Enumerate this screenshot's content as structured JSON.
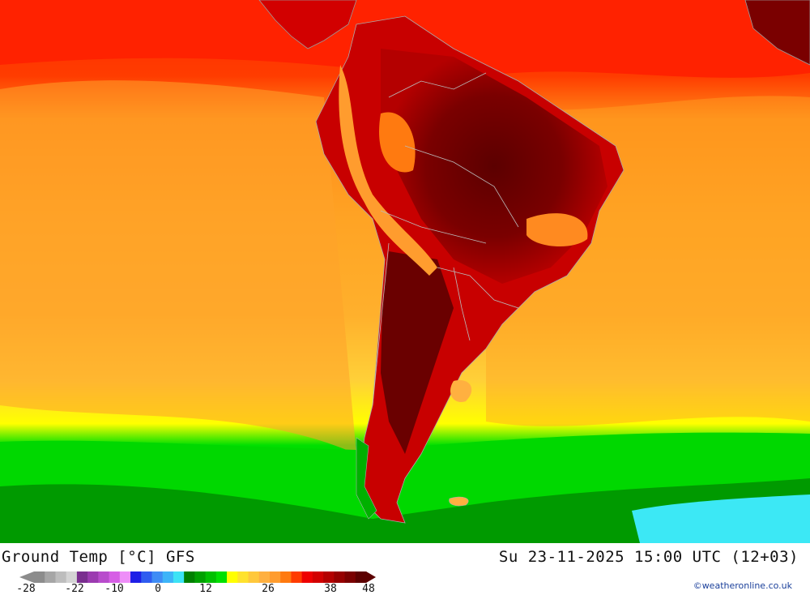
{
  "title": "Ground Temp [°C] GFS",
  "datetime": "Su 23-11-2025 15:00 UTC (12+03)",
  "credit": "©weatheronline.co.uk",
  "legend": {
    "ticks": [
      "-28",
      "-22",
      "-10",
      "0",
      "12",
      "26",
      "38",
      "48"
    ],
    "colors": [
      "#8c8c8c",
      "#a6a6a6",
      "#bdbdbd",
      "#d4d4d4",
      "#7a2e8f",
      "#9b3bb0",
      "#b84ccc",
      "#d65ee5",
      "#ee8ef8",
      "#1e1ee6",
      "#2f5cf0",
      "#3f8cf5",
      "#3db4f8",
      "#3ce3f5",
      "#008000",
      "#00a000",
      "#00c000",
      "#00e000",
      "#ffff00",
      "#ffe22e",
      "#ffc83c",
      "#ffb040",
      "#ff9c2e",
      "#ff7a10",
      "#ff3c00",
      "#ee0000",
      "#d20000",
      "#b40000",
      "#960000",
      "#7a0000",
      "#5c0000"
    ]
  },
  "map": {
    "region": "South America",
    "variable": "ground temperature"
  }
}
